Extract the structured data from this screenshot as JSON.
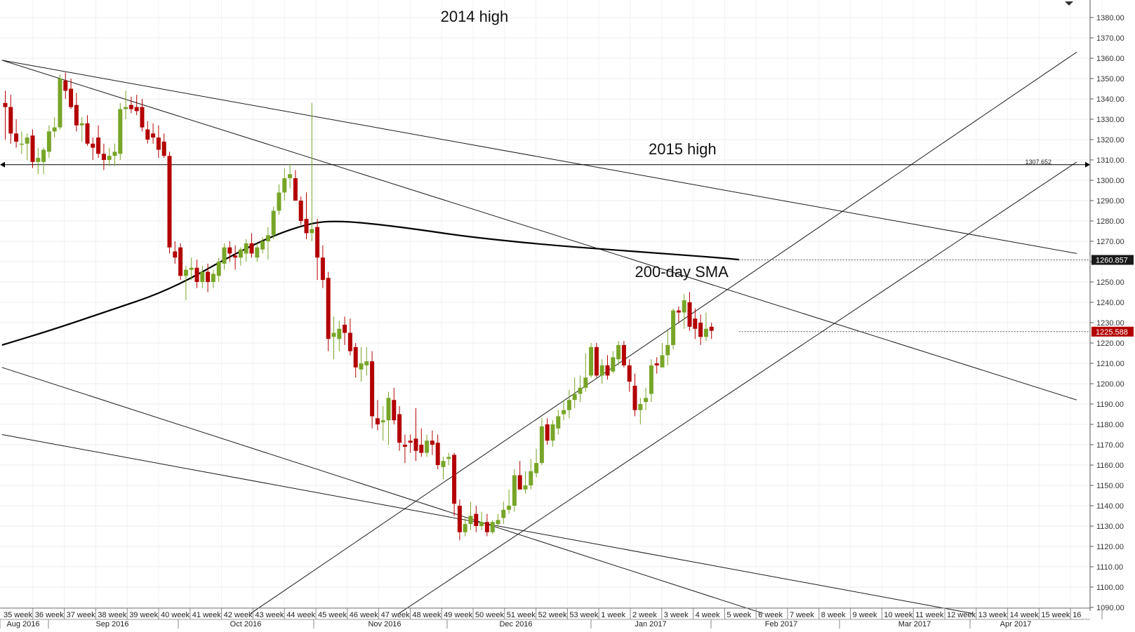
{
  "chart_data": {
    "type": "candlestick",
    "title": "",
    "xlabel": "",
    "ylabel": "",
    "ylim": [
      1084,
      1386
    ],
    "y_ticks": [
      "1090.00",
      "1100.00",
      "1110.00",
      "1120.00",
      "1130.00",
      "1140.00",
      "1150.00",
      "1160.00",
      "1170.00",
      "1180.00",
      "1190.00",
      "1200.00",
      "1210.00",
      "1220.00",
      "1230.00",
      "1240.00",
      "1250.00",
      "1260.00",
      "1270.00",
      "1280.00",
      "1290.00",
      "1300.00",
      "1310.00",
      "1320.00",
      "1330.00",
      "1340.00",
      "1350.00",
      "1360.00",
      "1370.00",
      "1380.00"
    ],
    "x_week_labels": [
      "35 week",
      "36 week",
      "37 week",
      "38 week",
      "39 week",
      "40 week",
      "41 week",
      "42 week",
      "43 week",
      "44 week",
      "45 week",
      "46 week",
      "47 week",
      "48 week",
      "49 week",
      "50 week",
      "51 week",
      "52 week",
      "53 week",
      "1 week",
      "2 week",
      "3 week",
      "4 week",
      "5 week",
      "6 week",
      "7 week",
      "8 week",
      "9 week",
      "10 week",
      "11 week",
      "12 week",
      "13 week",
      "14 week",
      "15 week",
      "16"
    ],
    "x_month_labels": [
      "Aug 2016",
      "Sep 2016",
      "Oct 2016",
      "Nov 2016",
      "Dec 2016",
      "Jan 2017",
      "Feb 2017",
      "Mar 2017",
      "Apr 2017"
    ],
    "grid": true,
    "colors": {
      "up": "#77a528",
      "down": "#b30000",
      "sma": "#000000",
      "line": "#1a1a1a",
      "flag_red": "#b30000",
      "flag_dark": "#1a1a1a"
    },
    "candles": [
      {
        "o": 1338,
        "h": 1344,
        "l": 1320,
        "c": 1336
      },
      {
        "o": 1336,
        "h": 1342,
        "l": 1318,
        "c": 1323
      },
      {
        "o": 1323,
        "h": 1330,
        "l": 1316,
        "c": 1319
      },
      {
        "o": 1318,
        "h": 1324,
        "l": 1313,
        "c": 1318
      },
      {
        "o": 1318,
        "h": 1323,
        "l": 1310,
        "c": 1321
      },
      {
        "o": 1322,
        "h": 1325,
        "l": 1306,
        "c": 1309
      },
      {
        "o": 1309,
        "h": 1316,
        "l": 1303,
        "c": 1311
      },
      {
        "o": 1309,
        "h": 1316,
        "l": 1303,
        "c": 1315
      },
      {
        "o": 1314,
        "h": 1327,
        "l": 1311,
        "c": 1324
      },
      {
        "o": 1324,
        "h": 1331,
        "l": 1321,
        "c": 1326
      },
      {
        "o": 1326,
        "h": 1352,
        "l": 1325,
        "c": 1350
      },
      {
        "o": 1349,
        "h": 1353,
        "l": 1340,
        "c": 1344
      },
      {
        "o": 1345,
        "h": 1350,
        "l": 1335,
        "c": 1336
      },
      {
        "o": 1337,
        "h": 1343,
        "l": 1324,
        "c": 1327
      },
      {
        "o": 1327,
        "h": 1331,
        "l": 1319,
        "c": 1328
      },
      {
        "o": 1328,
        "h": 1332,
        "l": 1317,
        "c": 1318
      },
      {
        "o": 1318,
        "h": 1321,
        "l": 1310,
        "c": 1316
      },
      {
        "o": 1321,
        "h": 1327,
        "l": 1311,
        "c": 1313
      },
      {
        "o": 1313,
        "h": 1318,
        "l": 1305,
        "c": 1310
      },
      {
        "o": 1310,
        "h": 1316,
        "l": 1307,
        "c": 1312
      },
      {
        "o": 1312,
        "h": 1318,
        "l": 1307,
        "c": 1314
      },
      {
        "o": 1313,
        "h": 1338,
        "l": 1310,
        "c": 1335
      },
      {
        "o": 1335,
        "h": 1344,
        "l": 1330,
        "c": 1336
      },
      {
        "o": 1337,
        "h": 1341,
        "l": 1333,
        "c": 1335
      },
      {
        "o": 1336,
        "h": 1342,
        "l": 1332,
        "c": 1334
      },
      {
        "o": 1336,
        "h": 1340,
        "l": 1324,
        "c": 1326
      },
      {
        "o": 1325,
        "h": 1329,
        "l": 1318,
        "c": 1320
      },
      {
        "o": 1323,
        "h": 1328,
        "l": 1318,
        "c": 1321
      },
      {
        "o": 1321,
        "h": 1327,
        "l": 1311,
        "c": 1315
      },
      {
        "o": 1319,
        "h": 1323,
        "l": 1311,
        "c": 1312
      },
      {
        "o": 1312,
        "h": 1314,
        "l": 1264,
        "c": 1267
      },
      {
        "o": 1265,
        "h": 1270,
        "l": 1259,
        "c": 1262
      },
      {
        "o": 1267,
        "h": 1269,
        "l": 1251,
        "c": 1253
      },
      {
        "o": 1253,
        "h": 1258,
        "l": 1241,
        "c": 1256
      },
      {
        "o": 1256,
        "h": 1262,
        "l": 1251,
        "c": 1257
      },
      {
        "o": 1257,
        "h": 1261,
        "l": 1247,
        "c": 1250
      },
      {
        "o": 1250,
        "h": 1258,
        "l": 1247,
        "c": 1255
      },
      {
        "o": 1255,
        "h": 1259,
        "l": 1245,
        "c": 1250
      },
      {
        "o": 1250,
        "h": 1256,
        "l": 1247,
        "c": 1254
      },
      {
        "o": 1253,
        "h": 1262,
        "l": 1250,
        "c": 1260
      },
      {
        "o": 1259,
        "h": 1269,
        "l": 1256,
        "c": 1267
      },
      {
        "o": 1267,
        "h": 1270,
        "l": 1260,
        "c": 1264
      },
      {
        "o": 1263,
        "h": 1268,
        "l": 1256,
        "c": 1262
      },
      {
        "o": 1262,
        "h": 1267,
        "l": 1258,
        "c": 1266
      },
      {
        "o": 1264,
        "h": 1271,
        "l": 1260,
        "c": 1269
      },
      {
        "o": 1269,
        "h": 1274,
        "l": 1262,
        "c": 1264
      },
      {
        "o": 1262,
        "h": 1269,
        "l": 1260,
        "c": 1267
      },
      {
        "o": 1266,
        "h": 1272,
        "l": 1264,
        "c": 1270
      },
      {
        "o": 1270,
        "h": 1277,
        "l": 1261,
        "c": 1273
      },
      {
        "o": 1273,
        "h": 1287,
        "l": 1271,
        "c": 1285
      },
      {
        "o": 1285,
        "h": 1298,
        "l": 1283,
        "c": 1294
      },
      {
        "o": 1294,
        "h": 1306,
        "l": 1290,
        "c": 1301
      },
      {
        "o": 1301,
        "h": 1308,
        "l": 1296,
        "c": 1303
      },
      {
        "o": 1301,
        "h": 1305,
        "l": 1291,
        "c": 1290
      },
      {
        "o": 1290,
        "h": 1292,
        "l": 1278,
        "c": 1280
      },
      {
        "o": 1281,
        "h": 1294,
        "l": 1271,
        "c": 1274
      },
      {
        "o": 1274,
        "h": 1338,
        "l": 1270,
        "c": 1276
      },
      {
        "o": 1277,
        "h": 1281,
        "l": 1251,
        "c": 1262
      },
      {
        "o": 1262,
        "h": 1268,
        "l": 1247,
        "c": 1251
      },
      {
        "o": 1252,
        "h": 1255,
        "l": 1216,
        "c": 1222
      },
      {
        "o": 1223,
        "h": 1233,
        "l": 1212,
        "c": 1225
      },
      {
        "o": 1222,
        "h": 1231,
        "l": 1216,
        "c": 1227
      },
      {
        "o": 1229,
        "h": 1233,
        "l": 1219,
        "c": 1225
      },
      {
        "o": 1225,
        "h": 1232,
        "l": 1214,
        "c": 1216
      },
      {
        "o": 1218,
        "h": 1220,
        "l": 1203,
        "c": 1208
      },
      {
        "o": 1207,
        "h": 1218,
        "l": 1201,
        "c": 1210
      },
      {
        "o": 1209,
        "h": 1218,
        "l": 1204,
        "c": 1211
      },
      {
        "o": 1211,
        "h": 1216,
        "l": 1178,
        "c": 1184
      },
      {
        "o": 1183,
        "h": 1192,
        "l": 1177,
        "c": 1180
      },
      {
        "o": 1181,
        "h": 1189,
        "l": 1172,
        "c": 1182
      },
      {
        "o": 1182,
        "h": 1196,
        "l": 1170,
        "c": 1193
      },
      {
        "o": 1192,
        "h": 1198,
        "l": 1180,
        "c": 1182
      },
      {
        "o": 1185,
        "h": 1189,
        "l": 1167,
        "c": 1171
      },
      {
        "o": 1170,
        "h": 1175,
        "l": 1161,
        "c": 1169
      },
      {
        "o": 1172,
        "h": 1175,
        "l": 1166,
        "c": 1171
      },
      {
        "o": 1173,
        "h": 1188,
        "l": 1162,
        "c": 1167
      },
      {
        "o": 1170,
        "h": 1178,
        "l": 1164,
        "c": 1166
      },
      {
        "o": 1166,
        "h": 1175,
        "l": 1164,
        "c": 1172
      },
      {
        "o": 1172,
        "h": 1177,
        "l": 1165,
        "c": 1170
      },
      {
        "o": 1171,
        "h": 1175,
        "l": 1158,
        "c": 1160
      },
      {
        "o": 1159,
        "h": 1164,
        "l": 1153,
        "c": 1162
      },
      {
        "o": 1163,
        "h": 1166,
        "l": 1160,
        "c": 1164
      },
      {
        "o": 1165,
        "h": 1166,
        "l": 1135,
        "c": 1141
      },
      {
        "o": 1140,
        "h": 1143,
        "l": 1123,
        "c": 1127
      },
      {
        "o": 1127,
        "h": 1134,
        "l": 1125,
        "c": 1131
      },
      {
        "o": 1131,
        "h": 1142,
        "l": 1128,
        "c": 1135
      },
      {
        "o": 1136,
        "h": 1140,
        "l": 1127,
        "c": 1130
      },
      {
        "o": 1130,
        "h": 1137,
        "l": 1128,
        "c": 1132
      },
      {
        "o": 1132,
        "h": 1136,
        "l": 1125,
        "c": 1127
      },
      {
        "o": 1127,
        "h": 1133,
        "l": 1126,
        "c": 1132
      },
      {
        "o": 1131,
        "h": 1136,
        "l": 1129,
        "c": 1133
      },
      {
        "o": 1134,
        "h": 1142,
        "l": 1131,
        "c": 1138
      },
      {
        "o": 1138,
        "h": 1148,
        "l": 1136,
        "c": 1140
      },
      {
        "o": 1140,
        "h": 1158,
        "l": 1137,
        "c": 1155
      },
      {
        "o": 1155,
        "h": 1162,
        "l": 1148,
        "c": 1148
      },
      {
        "o": 1148,
        "h": 1157,
        "l": 1146,
        "c": 1150
      },
      {
        "o": 1150,
        "h": 1163,
        "l": 1148,
        "c": 1157
      },
      {
        "o": 1156,
        "h": 1168,
        "l": 1154,
        "c": 1161
      },
      {
        "o": 1161,
        "h": 1183,
        "l": 1160,
        "c": 1179
      },
      {
        "o": 1180,
        "h": 1183,
        "l": 1170,
        "c": 1172
      },
      {
        "o": 1172,
        "h": 1182,
        "l": 1169,
        "c": 1180
      },
      {
        "o": 1178,
        "h": 1187,
        "l": 1175,
        "c": 1184
      },
      {
        "o": 1185,
        "h": 1192,
        "l": 1182,
        "c": 1187
      },
      {
        "o": 1187,
        "h": 1197,
        "l": 1183,
        "c": 1192
      },
      {
        "o": 1192,
        "h": 1203,
        "l": 1188,
        "c": 1195
      },
      {
        "o": 1195,
        "h": 1204,
        "l": 1191,
        "c": 1198
      },
      {
        "o": 1198,
        "h": 1215,
        "l": 1196,
        "c": 1203
      },
      {
        "o": 1204,
        "h": 1220,
        "l": 1203,
        "c": 1218
      },
      {
        "o": 1218,
        "h": 1220,
        "l": 1203,
        "c": 1204
      },
      {
        "o": 1204,
        "h": 1212,
        "l": 1200,
        "c": 1209
      },
      {
        "o": 1209,
        "h": 1214,
        "l": 1202,
        "c": 1204
      },
      {
        "o": 1206,
        "h": 1216,
        "l": 1205,
        "c": 1213
      },
      {
        "o": 1212,
        "h": 1221,
        "l": 1209,
        "c": 1219
      },
      {
        "o": 1219,
        "h": 1221,
        "l": 1208,
        "c": 1209
      },
      {
        "o": 1209,
        "h": 1212,
        "l": 1196,
        "c": 1201
      },
      {
        "o": 1199,
        "h": 1205,
        "l": 1184,
        "c": 1187
      },
      {
        "o": 1187,
        "h": 1193,
        "l": 1180,
        "c": 1190
      },
      {
        "o": 1191,
        "h": 1198,
        "l": 1187,
        "c": 1193
      },
      {
        "o": 1195,
        "h": 1212,
        "l": 1191,
        "c": 1209
      },
      {
        "o": 1210,
        "h": 1213,
        "l": 1205,
        "c": 1209
      },
      {
        "o": 1208,
        "h": 1220,
        "l": 1208,
        "c": 1214
      },
      {
        "o": 1214,
        "h": 1226,
        "l": 1209,
        "c": 1219
      },
      {
        "o": 1219,
        "h": 1237,
        "l": 1217,
        "c": 1236
      },
      {
        "o": 1236,
        "h": 1238,
        "l": 1230,
        "c": 1235
      },
      {
        "o": 1235,
        "h": 1244,
        "l": 1227,
        "c": 1241
      },
      {
        "o": 1240,
        "h": 1245,
        "l": 1226,
        "c": 1228
      },
      {
        "o": 1232,
        "h": 1237,
        "l": 1222,
        "c": 1227
      },
      {
        "o": 1230,
        "h": 1234,
        "l": 1219,
        "c": 1223
      },
      {
        "o": 1223,
        "h": 1235,
        "l": 1221,
        "c": 1227
      },
      {
        "o": 1228,
        "h": 1230,
        "l": 1222,
        "c": 1226
      }
    ],
    "sma_200": [
      {
        "i": -0.6,
        "v": 1219
      },
      {
        "i": 8,
        "v": 1226
      },
      {
        "i": 18,
        "v": 1235
      },
      {
        "i": 30,
        "v": 1246
      },
      {
        "i": 42,
        "v": 1264
      },
      {
        "i": 50,
        "v": 1274
      },
      {
        "i": 56,
        "v": 1279
      },
      {
        "i": 60,
        "v": 1280
      },
      {
        "i": 66,
        "v": 1279
      },
      {
        "i": 75,
        "v": 1276
      },
      {
        "i": 85,
        "v": 1272
      },
      {
        "i": 100,
        "v": 1268
      },
      {
        "i": 110,
        "v": 1266
      },
      {
        "i": 120,
        "v": 1264
      },
      {
        "i": 130,
        "v": 1262
      },
      {
        "i": 134,
        "v": 1261
      }
    ],
    "horizontal_line": {
      "label": "1307.652",
      "value": 1307.652
    },
    "trendlines": [
      {
        "i1": -0.6,
        "v1": 1359,
        "i2": 195.7,
        "v2": 1264
      },
      {
        "i1": -0.6,
        "v1": 1359,
        "i2": 195.7,
        "v2": 1192
      },
      {
        "i1": -0.6,
        "v1": 1208,
        "i2": 138.5,
        "v2": 1087
      },
      {
        "i1": -0.6,
        "v1": 1175,
        "i2": 176.8,
        "v2": 1087
      },
      {
        "i1": 44.8,
        "v1": 1087,
        "i2": 195.7,
        "v2": 1363
      },
      {
        "i1": 71.9,
        "v1": 1087,
        "i2": 195.7,
        "v2": 1309
      }
    ],
    "reference_lines": [
      {
        "value": 1260.857,
        "from_i": 134
      },
      {
        "value": 1225.588,
        "from_i": 134
      }
    ],
    "price_flags": [
      {
        "label": "1260.857",
        "value": 1260.857,
        "style": "dark"
      },
      {
        "label": "1225.588",
        "value": 1225.588,
        "style": "red"
      }
    ],
    "annotations": [
      {
        "text": "2014 high",
        "i": 79.5,
        "v": 1378
      },
      {
        "text": "2015 high",
        "i": 117.5,
        "v": 1312.7
      },
      {
        "text": "200-day SMA",
        "i": 115,
        "v": 1252.5
      }
    ]
  }
}
